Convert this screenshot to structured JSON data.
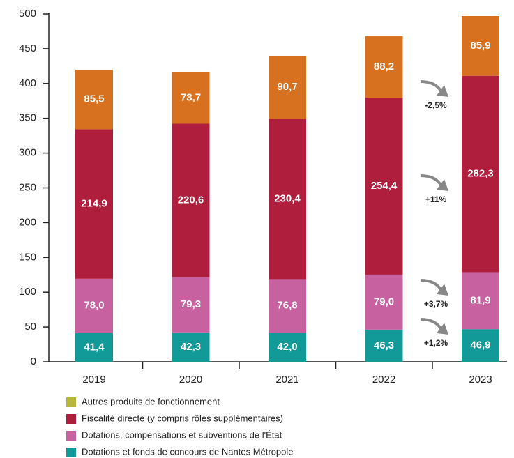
{
  "chart_data": {
    "type": "stacked_bar",
    "categories": [
      "2019",
      "2020",
      "2021",
      "2022",
      "2023"
    ],
    "series": [
      {
        "name": "Autres produits de fonctionnement",
        "color": "#d8711f",
        "legend_color": "#b7b83b",
        "values": [
          85.5,
          73.7,
          90.7,
          88.2,
          85.9
        ],
        "value_labels": [
          "85,5",
          "73,7",
          "90,7",
          "88,2",
          "85,9"
        ]
      },
      {
        "name": "Fiscalité directe (y compris rôles supplémentaires)",
        "color": "#b01e3e",
        "legend_color": "#b01e3e",
        "values": [
          214.9,
          220.6,
          230.4,
          254.4,
          282.3
        ],
        "value_labels": [
          "214,9",
          "220,6",
          "230,4",
          "254,4",
          "282,3"
        ]
      },
      {
        "name": "Dotations, compensations et subventions de l'État",
        "color": "#c8619f",
        "legend_color": "#c8619f",
        "values": [
          78.0,
          79.3,
          76.8,
          79.0,
          81.9
        ],
        "value_labels": [
          "78,0",
          "79,3",
          "76,8",
          "79,0",
          "81,9"
        ]
      },
      {
        "name": "Dotations et fonds de concours de Nantes Métropole",
        "color": "#119a98",
        "legend_color": "#119a98",
        "values": [
          41.4,
          42.3,
          42.0,
          46.3,
          46.9
        ],
        "value_labels": [
          "41,4",
          "42,3",
          "42,0",
          "46,3",
          "46,9"
        ]
      }
    ],
    "annotations": [
      "-2,5%",
      "+11%",
      "+3,7%",
      "+1,2%"
    ],
    "ylim": [
      0,
      500
    ],
    "yticks": [
      0,
      50,
      100,
      150,
      200,
      250,
      300,
      350,
      400,
      450,
      500
    ]
  }
}
